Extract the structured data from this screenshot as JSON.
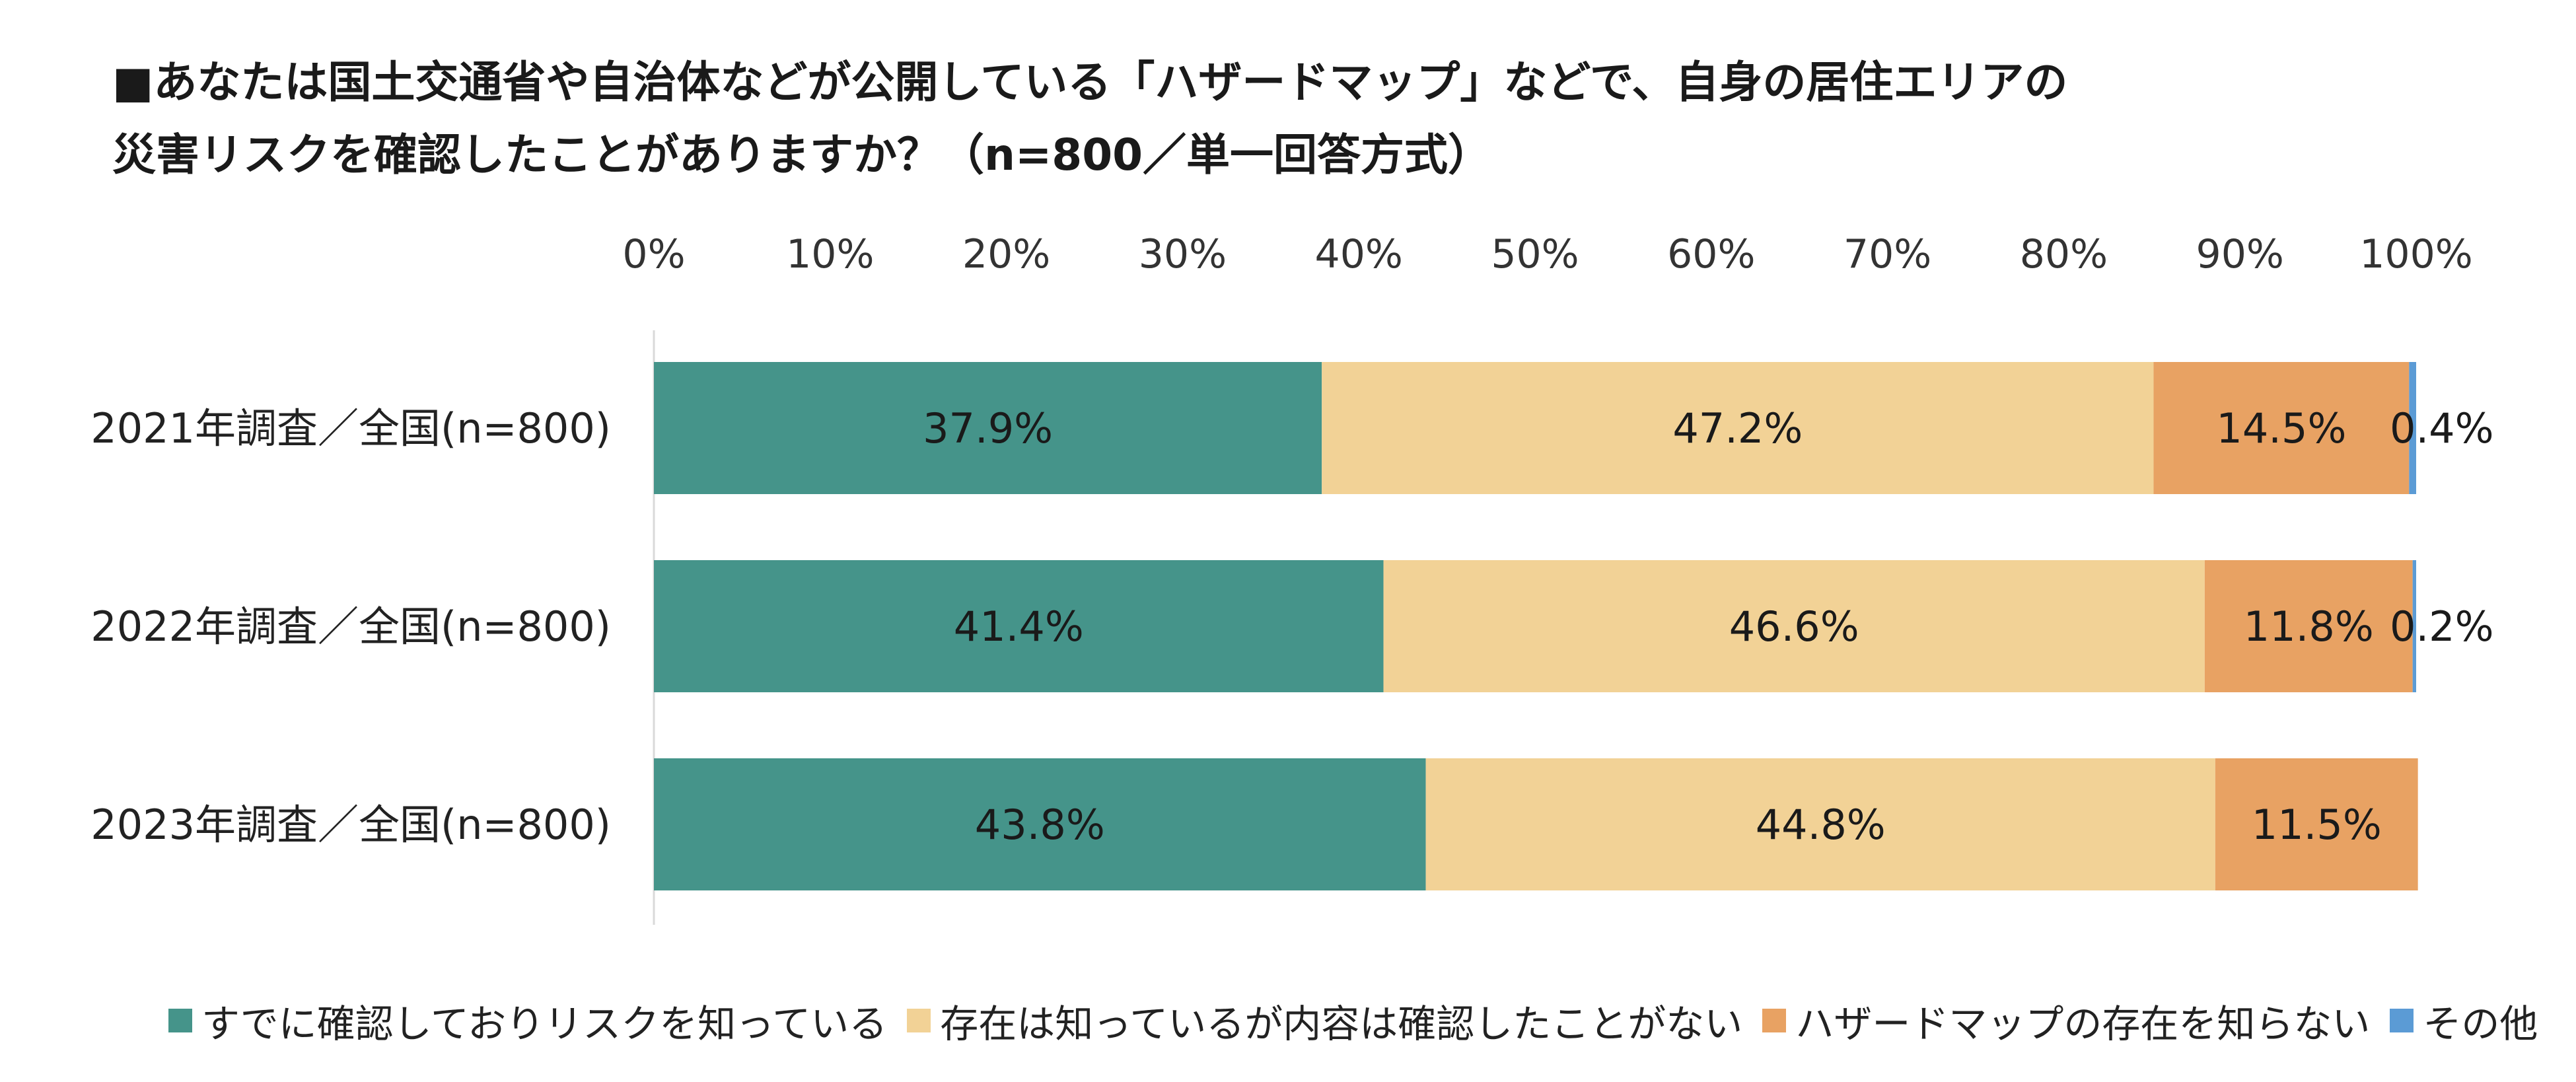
{
  "title": {
    "line1": "■あなたは国土交通省や自治体などが公開している「ハザードマップ」などで、自身の居住エリアの",
    "line2": "災害リスクを確認したことがありますか？（n=800／単一回答方式）"
  },
  "colors": {
    "confirmed": "#45948A",
    "aware_not_confirmed": "#F2D296",
    "unaware": "#E8A263",
    "other": "#5B9BD5",
    "axis": "#D9D9D9"
  },
  "chart_data": {
    "type": "bar",
    "orientation": "horizontal",
    "stacked": "percent",
    "title": "■あなたは国土交通省や自治体などが公開している「ハザードマップ」などで、自身の居住エリアの災害リスクを確認したことがありますか？（n=800／単一回答方式）",
    "categories": [
      "2021年調査／全国(n=800)",
      "2022年調査／全国(n=800)",
      "2023年調査／全国(n=800)"
    ],
    "series": [
      {
        "name": "すでに確認しておりリスクを知っている",
        "values": [
          37.9,
          41.4,
          43.8
        ],
        "labels": [
          "37.9%",
          "41.4%",
          "43.8%"
        ],
        "color": "#45948A"
      },
      {
        "name": "存在は知っているが内容は確認したことがない",
        "values": [
          47.2,
          46.6,
          44.8
        ],
        "labels": [
          "47.2%",
          "46.6%",
          "44.8%"
        ],
        "color": "#F2D296"
      },
      {
        "name": "ハザードマップの存在を知らない",
        "values": [
          14.5,
          11.8,
          11.5
        ],
        "labels": [
          "14.5%",
          "11.8%",
          "11.5%"
        ],
        "color": "#E8A263"
      },
      {
        "name": "その他",
        "values": [
          0.4,
          0.2,
          0.0
        ],
        "labels": [
          "0.4%",
          "0.2%",
          ""
        ],
        "color": "#5B9BD5"
      }
    ],
    "xlim": [
      0,
      100
    ],
    "xticks": [
      "0%",
      "10%",
      "20%",
      "30%",
      "40%",
      "50%",
      "60%",
      "70%",
      "80%",
      "90%",
      "100%"
    ],
    "xlabel": "",
    "ylabel": "",
    "legend": "bottom",
    "axis_position": "top"
  }
}
